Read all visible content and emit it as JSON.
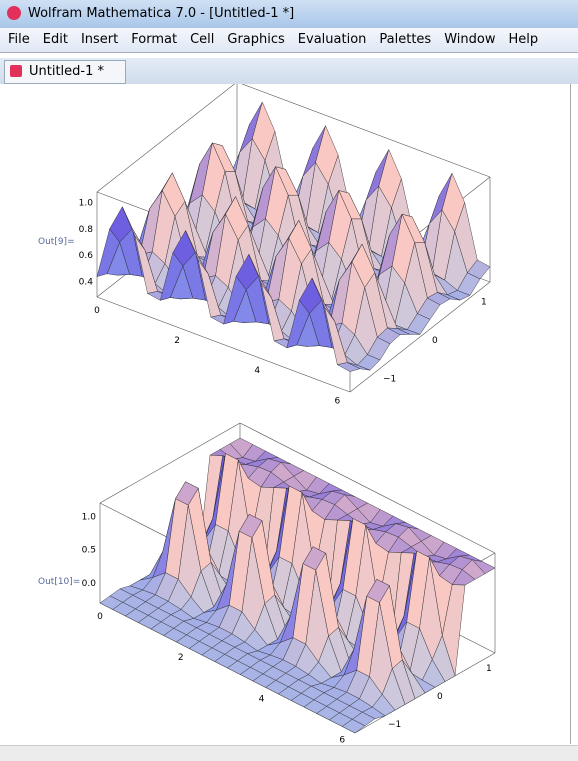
{
  "window": {
    "title": "Wolfram Mathematica 7.0 - [Untitled-1 *]"
  },
  "menu": [
    "File",
    "Edit",
    "Insert",
    "Format",
    "Cell",
    "Graphics",
    "Evaluation",
    "Palettes",
    "Window",
    "Help"
  ],
  "notebook": {
    "tab": "Untitled-1 *"
  },
  "outputs": [
    {
      "label": "Out[9]=",
      "z_ticks": [
        "1.0",
        "0.8",
        "0.6",
        "0.4"
      ],
      "x_ticks": [
        "0",
        "2",
        "4",
        "6"
      ],
      "y_ticks": [
        "1",
        "0",
        "−1"
      ]
    },
    {
      "label": "Out[10]=",
      "z_ticks": [
        "1.0",
        "0.5",
        "0.0"
      ],
      "x_ticks": [
        "0",
        "2",
        "4",
        "6"
      ],
      "y_ticks": [
        "1",
        "0",
        "−1"
      ]
    }
  ]
}
